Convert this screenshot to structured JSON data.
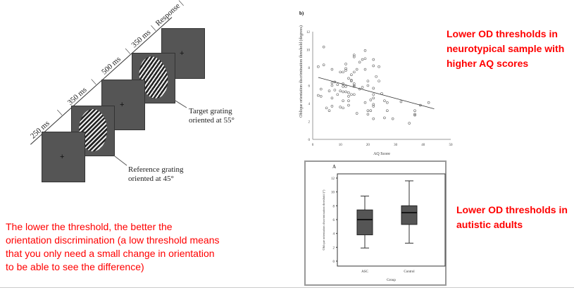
{
  "diagram": {
    "timeline": [
      "250 ms",
      "350 ms",
      "500 ms",
      "350 ms",
      "Response"
    ],
    "target_label": [
      "Target grating",
      "oriented at 55°"
    ],
    "reference_label": [
      "Reference grating",
      "oriented at 45°"
    ],
    "fixation": "+"
  },
  "notes": {
    "ad_note": "Lower OD thresholds in neurotypical sample with higher AQ scores",
    "asc_note": "Lower OD thresholds in autistic adults",
    "explanation": "The lower the threshold, the better the orientation discrimination (a low threshold means that you only need a small change in orientation to be able to see the difference)"
  },
  "colors": {
    "note": "#ff0000",
    "box_fill": "#555555"
  },
  "chart_data": [
    {
      "type": "scatter",
      "panel_label": "b)",
      "xlabel": "AQ Score",
      "ylabel": "Oblique orientation discrimination threshold (degrees)",
      "xlim": [
        0,
        50
      ],
      "ylim": [
        0,
        12
      ],
      "xticks": [
        0,
        10,
        20,
        30,
        40,
        50
      ],
      "yticks": [
        0,
        2,
        4,
        6,
        8,
        10,
        12
      ],
      "points": [
        [
          2,
          8.1
        ],
        [
          2,
          4.9
        ],
        [
          3,
          5.6
        ],
        [
          3,
          4.8
        ],
        [
          4,
          10.3
        ],
        [
          4,
          8.3
        ],
        [
          5,
          3.5
        ],
        [
          6,
          5.4
        ],
        [
          6,
          3.2
        ],
        [
          7,
          7.8
        ],
        [
          7,
          6.3
        ],
        [
          7,
          6.0
        ],
        [
          7,
          4.6
        ],
        [
          7,
          3.7
        ],
        [
          8,
          6.4
        ],
        [
          8,
          5.5
        ],
        [
          9,
          6.1
        ],
        [
          9,
          5.0
        ],
        [
          10,
          7.5
        ],
        [
          10,
          5.4
        ],
        [
          10,
          3.6
        ],
        [
          11,
          7.5
        ],
        [
          11,
          6.2
        ],
        [
          11,
          5.9
        ],
        [
          11,
          5.3
        ],
        [
          11,
          4.3
        ],
        [
          11,
          3.5
        ],
        [
          12,
          8.4
        ],
        [
          12,
          7.9
        ],
        [
          12,
          7.7
        ],
        [
          12,
          5.9
        ],
        [
          12,
          5.3
        ],
        [
          13,
          6.8
        ],
        [
          13,
          5.2
        ],
        [
          13,
          4.8
        ],
        [
          13,
          4.3
        ],
        [
          13,
          3.8
        ],
        [
          14,
          7.2
        ],
        [
          14,
          6.6
        ],
        [
          14,
          6.5
        ],
        [
          14,
          5.0
        ],
        [
          15,
          9.4
        ],
        [
          15,
          9.2
        ],
        [
          15,
          7.5
        ],
        [
          15,
          6.2
        ],
        [
          15,
          6.0
        ],
        [
          15,
          5.9
        ],
        [
          15,
          5.0
        ],
        [
          16,
          7.8
        ],
        [
          16,
          2.9
        ],
        [
          17,
          8.6
        ],
        [
          17,
          5.6
        ],
        [
          18,
          8.9
        ],
        [
          18,
          5.8
        ],
        [
          19,
          9.9
        ],
        [
          19,
          9.0
        ],
        [
          19,
          7.8
        ],
        [
          19,
          4.1
        ],
        [
          20,
          6.5
        ],
        [
          20,
          6.0
        ],
        [
          20,
          3.2
        ],
        [
          20,
          2.8
        ],
        [
          21,
          4.4
        ],
        [
          21,
          3.2
        ],
        [
          22,
          8.9
        ],
        [
          22,
          8.2
        ],
        [
          22,
          5.7
        ],
        [
          22,
          5.0
        ],
        [
          22,
          4.6
        ],
        [
          22,
          3.9
        ],
        [
          22,
          3.7
        ],
        [
          22,
          2.3
        ],
        [
          23,
          7.0
        ],
        [
          24,
          8.1
        ],
        [
          24,
          6.5
        ],
        [
          25,
          5.1
        ],
        [
          26,
          4.3
        ],
        [
          26,
          2.4
        ],
        [
          27,
          4.1
        ],
        [
          27,
          3.2
        ],
        [
          29,
          2.3
        ],
        [
          32,
          4.2
        ],
        [
          35,
          1.8
        ],
        [
          37,
          3.2
        ],
        [
          37,
          2.8
        ],
        [
          37,
          2.7
        ],
        [
          39,
          3.8
        ],
        [
          42,
          4.1
        ]
      ],
      "fit_line": [
        [
          2,
          6.9
        ],
        [
          44,
          3.4
        ]
      ]
    },
    {
      "type": "box",
      "panel_label": "A",
      "xlabel": "Group",
      "ylabel": "Oblique orientation discrimination threshold (°)",
      "ylim": [
        0,
        12
      ],
      "yticks": [
        0,
        2,
        4,
        6,
        8,
        10,
        12
      ],
      "categories": [
        "ASC",
        "Control"
      ],
      "boxes": [
        {
          "min": 1.9,
          "q1": 3.8,
          "median": 6.0,
          "q3": 7.4,
          "max": 9.4
        },
        {
          "min": 2.6,
          "q1": 5.3,
          "median": 7.0,
          "q3": 8.0,
          "max": 11.6
        }
      ]
    }
  ]
}
